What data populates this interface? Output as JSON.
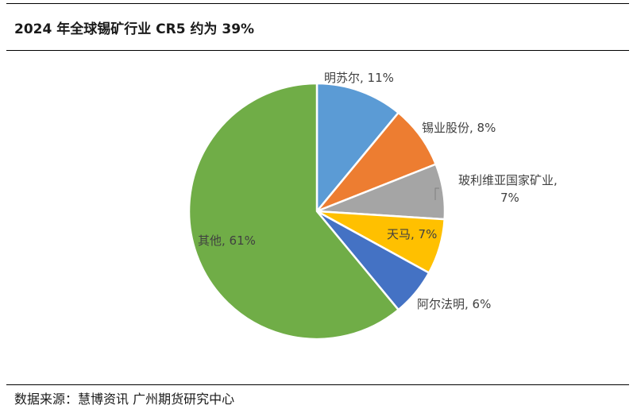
{
  "title": "2024 年全球锡矿行业 CR5 约为 39%",
  "source": "数据来源：慧博资讯 广州期货研究中心",
  "chart_data": {
    "type": "pie",
    "slices": [
      {
        "name": "明苏尔",
        "value": 11,
        "label": "明苏尔, 11%",
        "color": "#5b9bd5"
      },
      {
        "name": "锡业股份",
        "value": 8,
        "label": "锡业股份, 8%",
        "color": "#ed7d31"
      },
      {
        "name": "玻利维亚国家矿业",
        "value": 7,
        "label_lines": [
          "玻利维亚国家矿业,",
          "7%"
        ],
        "color": "#a5a5a5"
      },
      {
        "name": "天马",
        "value": 7,
        "label": "天马, 7%",
        "color": "#ffc000"
      },
      {
        "name": "阿尔法明",
        "value": 6,
        "label": "阿尔法明, 6%",
        "color": "#4472c4"
      },
      {
        "name": "其他",
        "value": 61,
        "label": "其他, 61%",
        "color": "#70ad47"
      }
    ]
  }
}
